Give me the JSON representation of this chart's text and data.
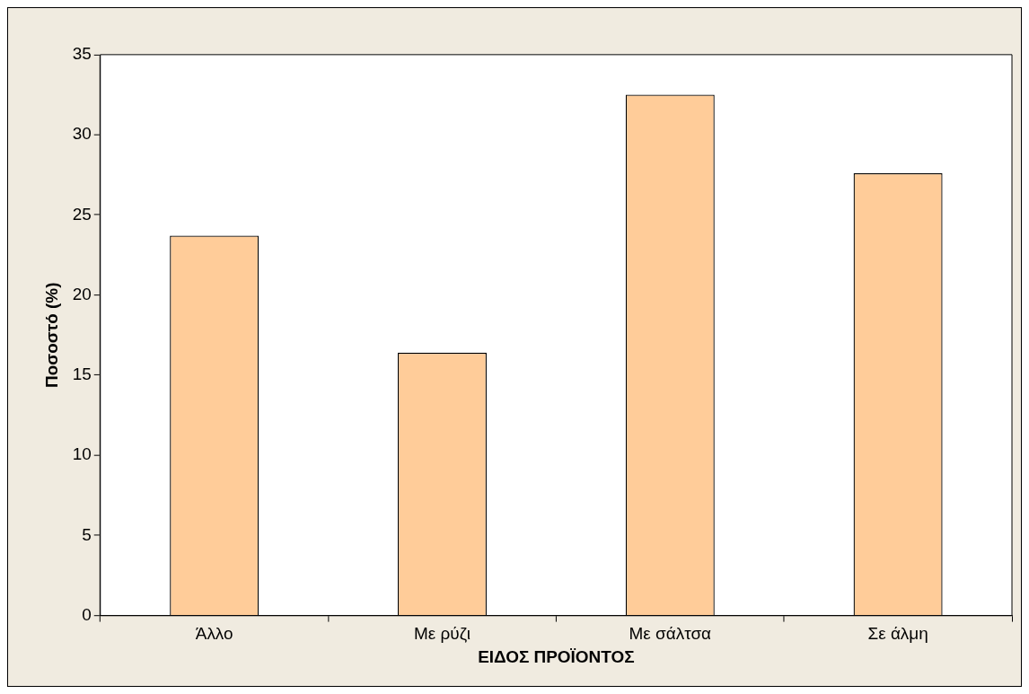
{
  "chart_data": {
    "type": "bar",
    "xlabel": "ΕΙΔΟΣ ΠΡΟΪΟΝΤΟΣ",
    "ylabel": "Ποσοστό (%)",
    "categories": [
      "Άλλο",
      "Με ρύζι",
      "Με σάλτσα",
      "Σε άλμη"
    ],
    "values": [
      23.7,
      16.4,
      32.5,
      27.6
    ],
    "color": "#ffcc99",
    "ylim": [
      0,
      35
    ],
    "yticks": [
      0,
      5,
      10,
      15,
      20,
      25,
      30,
      35
    ],
    "grid": false,
    "legend": false
  }
}
